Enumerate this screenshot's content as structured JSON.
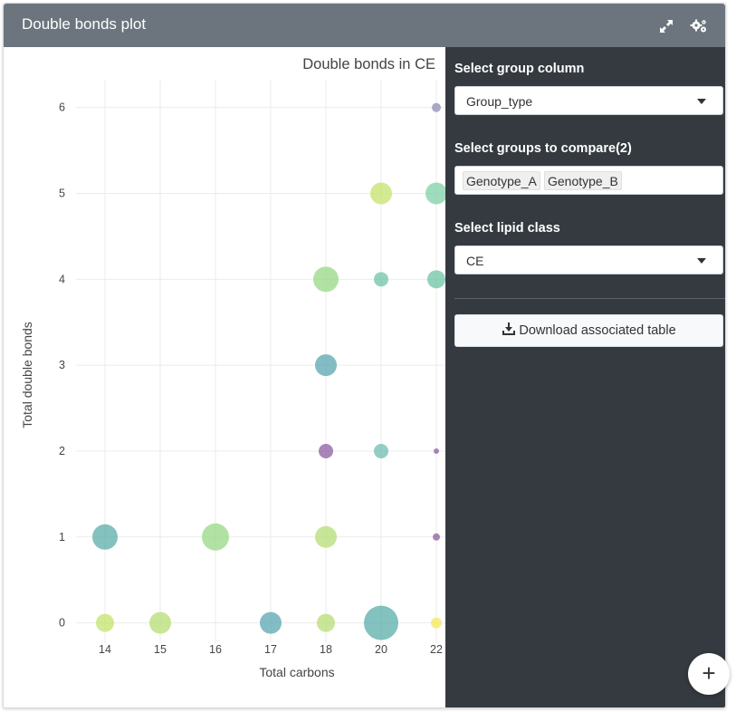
{
  "card": {
    "title": "Double bonds plot",
    "icons": [
      "expand-icon",
      "gears-icon"
    ]
  },
  "sidebar": {
    "group_column": {
      "label": "Select group column",
      "value": "Group_type"
    },
    "groups_compare": {
      "label": "Select groups to compare(2)",
      "tags": [
        "Genotype_A",
        "Genotype_B"
      ]
    },
    "lipid_class": {
      "label": "Select lipid class",
      "value": "CE"
    },
    "download_label": "Download associated table"
  },
  "fab_label": "+",
  "colors": {
    "header_bg": "#6c757d",
    "sidebar_bg": "#343a40",
    "purple": "#8e5ca0",
    "teal": "#5aada8",
    "green": "#98d884",
    "lime": "#c4e36c",
    "yellow": "#f3e85c",
    "slate": "#8f8db2"
  },
  "chart_data": {
    "type": "scatter",
    "title": "Double bonds in CE",
    "xlabel": "Total carbons",
    "ylabel": "Total double bonds",
    "x_categories": [
      "14",
      "15",
      "16",
      "17",
      "18",
      "20",
      "22"
    ],
    "y_ticks": [
      0,
      1,
      2,
      3,
      4,
      5,
      6
    ],
    "ylim": [
      -0.7,
      6.45
    ],
    "grid": true,
    "legend": "none",
    "points": [
      {
        "x": "22",
        "y": 6,
        "size": 5,
        "color": "#8f8db2"
      },
      {
        "x": "20",
        "y": 5,
        "size": 12,
        "color": "#c4e36c"
      },
      {
        "x": "22",
        "y": 5,
        "size": 12,
        "color": "#7fd0a8"
      },
      {
        "x": "18",
        "y": 4,
        "size": 14,
        "color": "#98d884"
      },
      {
        "x": "20",
        "y": 4,
        "size": 8,
        "color": "#6ec4a4"
      },
      {
        "x": "22",
        "y": 4,
        "size": 10,
        "color": "#6ec4a4"
      },
      {
        "x": "18",
        "y": 3,
        "size": 12,
        "color": "#5aa6b0"
      },
      {
        "x": "18",
        "y": 2,
        "size": 8,
        "color": "#8e5ca0"
      },
      {
        "x": "20",
        "y": 2,
        "size": 8,
        "color": "#6ebdb0"
      },
      {
        "x": "22",
        "y": 2,
        "size": 3,
        "color": "#8e5ca0"
      },
      {
        "x": "14",
        "y": 1,
        "size": 14,
        "color": "#5aada8"
      },
      {
        "x": "16",
        "y": 1,
        "size": 15,
        "color": "#98d884"
      },
      {
        "x": "18",
        "y": 1,
        "size": 12,
        "color": "#b5dd74"
      },
      {
        "x": "22",
        "y": 1,
        "size": 4,
        "color": "#8e5ca0"
      },
      {
        "x": "14",
        "y": 0,
        "size": 10,
        "color": "#c4e36c"
      },
      {
        "x": "15",
        "y": 0,
        "size": 12,
        "color": "#b5dd74"
      },
      {
        "x": "17",
        "y": 0,
        "size": 12,
        "color": "#5aa6b0"
      },
      {
        "x": "18",
        "y": 0,
        "size": 10,
        "color": "#b5dd74"
      },
      {
        "x": "20",
        "y": 0,
        "size": 19,
        "color": "#5aada8"
      },
      {
        "x": "22",
        "y": 0,
        "size": 6,
        "color": "#f3e85c"
      }
    ]
  }
}
